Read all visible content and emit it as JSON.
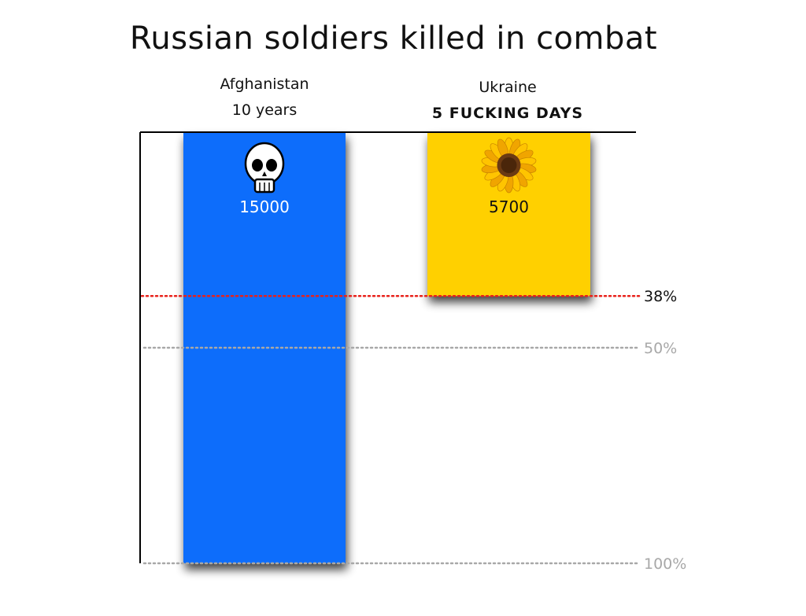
{
  "chart_data": {
    "type": "bar",
    "title": "Russian soldiers killed in combat",
    "categories": [
      {
        "name": "Afghanistan",
        "subtitle": "10 years",
        "subtitle_bold": false,
        "icon": "skull-icon"
      },
      {
        "name": "Ukraine",
        "subtitle": "5 FUCKING DAYS",
        "subtitle_bold": true,
        "icon": "sunflower-icon"
      }
    ],
    "values": [
      15000,
      5700
    ],
    "value_labels": [
      "15000",
      "5700"
    ],
    "ylim": [
      0,
      15000
    ],
    "inverted": true,
    "colors": [
      "#0a6dfb",
      "#ffd000"
    ],
    "reference_lines": [
      {
        "fraction": 0.38,
        "label": "38%",
        "color": "#e8211a"
      },
      {
        "fraction": 0.5,
        "label": "50%",
        "color": "#a8a8a8"
      },
      {
        "fraction": 1.0,
        "label": "100%",
        "color": "#a8a8a8"
      }
    ]
  }
}
